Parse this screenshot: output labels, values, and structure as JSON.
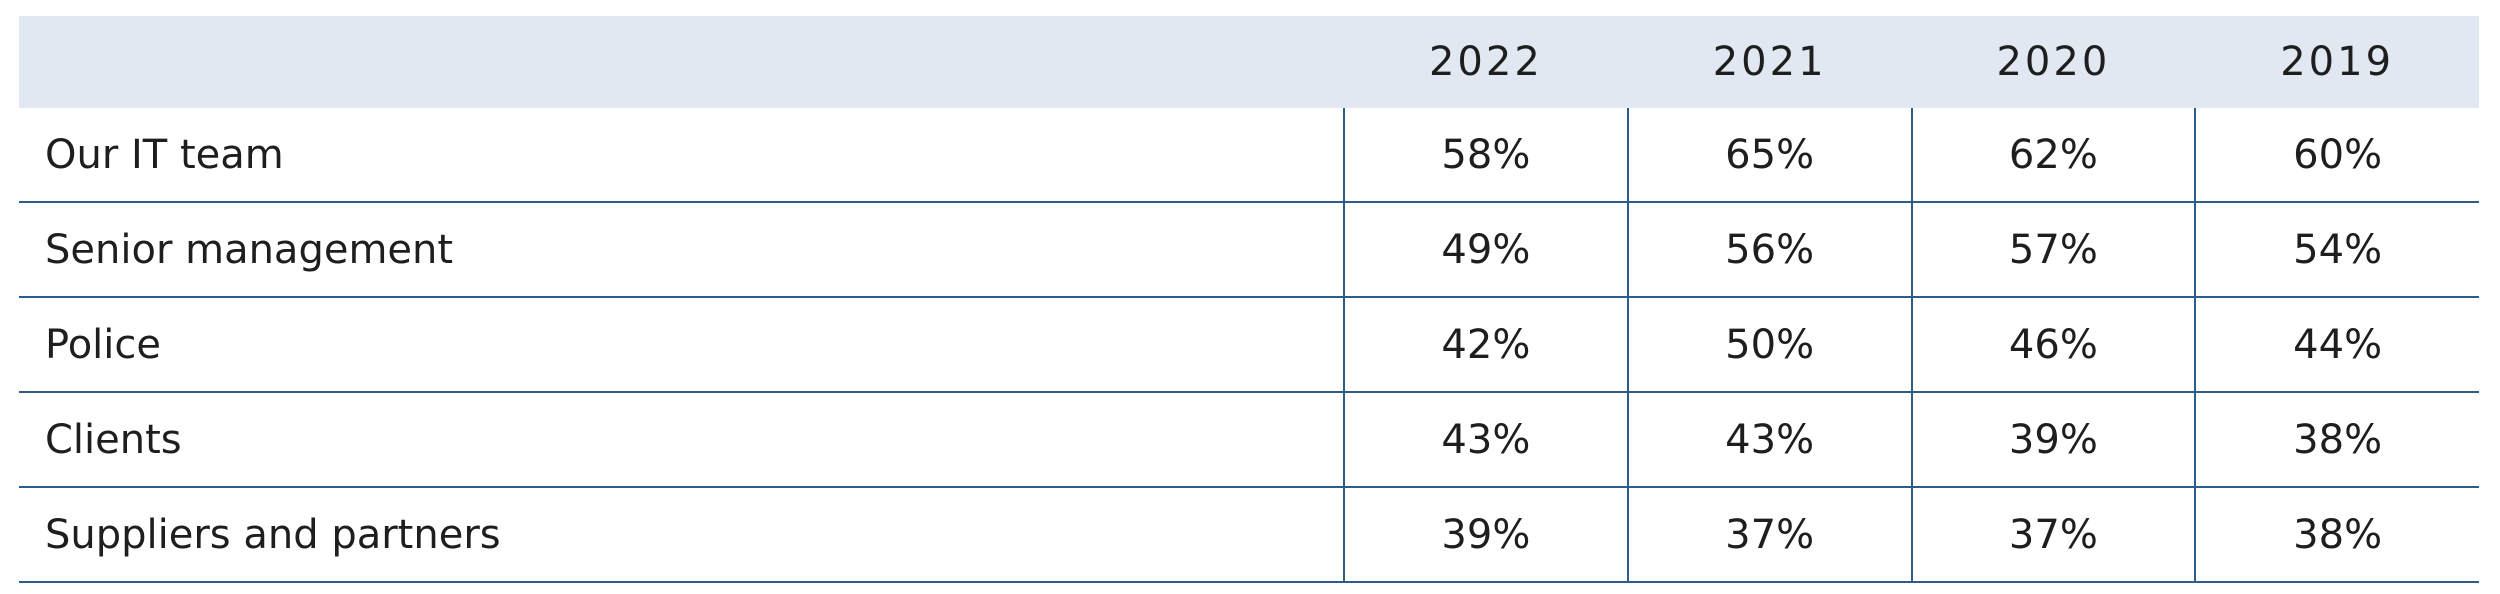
{
  "table": {
    "columns": [
      "2022",
      "2021",
      "2020",
      "2019"
    ],
    "rows": [
      [
        "Our IT team",
        "58%",
        "65%",
        "62%",
        "60%"
      ],
      [
        "Senior management",
        "49%",
        "56%",
        "57%",
        "54%"
      ],
      [
        "Police",
        "42%",
        "50%",
        "46%",
        "44%"
      ],
      [
        "Clients",
        "43%",
        "43%",
        "39%",
        "38%"
      ],
      [
        "Suppliers and partners",
        "39%",
        "37%",
        "37%",
        "38%"
      ]
    ]
  }
}
